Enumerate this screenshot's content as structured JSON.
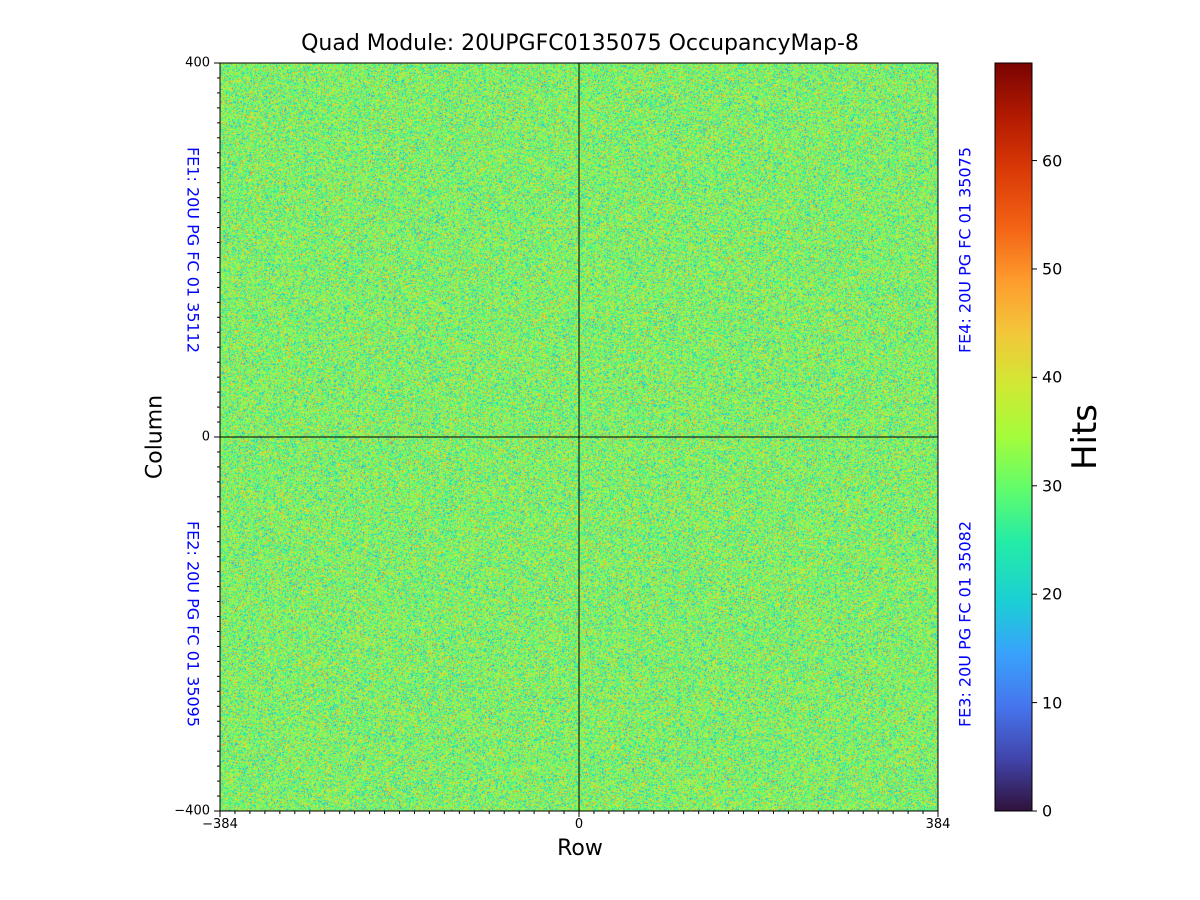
{
  "chart_data": {
    "type": "heatmap",
    "title": "Quad Module: 20UPGFC0135075 OccupancyMap-8",
    "xlabel": "Row",
    "ylabel": "Column",
    "xlim": [
      -384,
      384
    ],
    "ylim": [
      -400,
      400
    ],
    "x_ticks": [
      "−384",
      "0",
      "384"
    ],
    "y_ticks": [
      "400",
      "0",
      "−400"
    ],
    "colorbar": {
      "label": "Hits",
      "range": [
        0,
        69
      ],
      "ticks": [
        "0",
        "10",
        "20",
        "30",
        "40",
        "50",
        "60"
      ],
      "colormap": "turbo"
    },
    "value_distribution": {
      "mean": 32,
      "spread": 12
    },
    "frontends": {
      "fe1": "FE1: 20U PG FC 01 35112",
      "fe2": "FE2: 20U PG FC 01 35095",
      "fe3": "FE3: 20U PG FC 01 35082",
      "fe4": "FE4: 20U PG FC 01 35075"
    },
    "label_color": "#0000ff"
  }
}
